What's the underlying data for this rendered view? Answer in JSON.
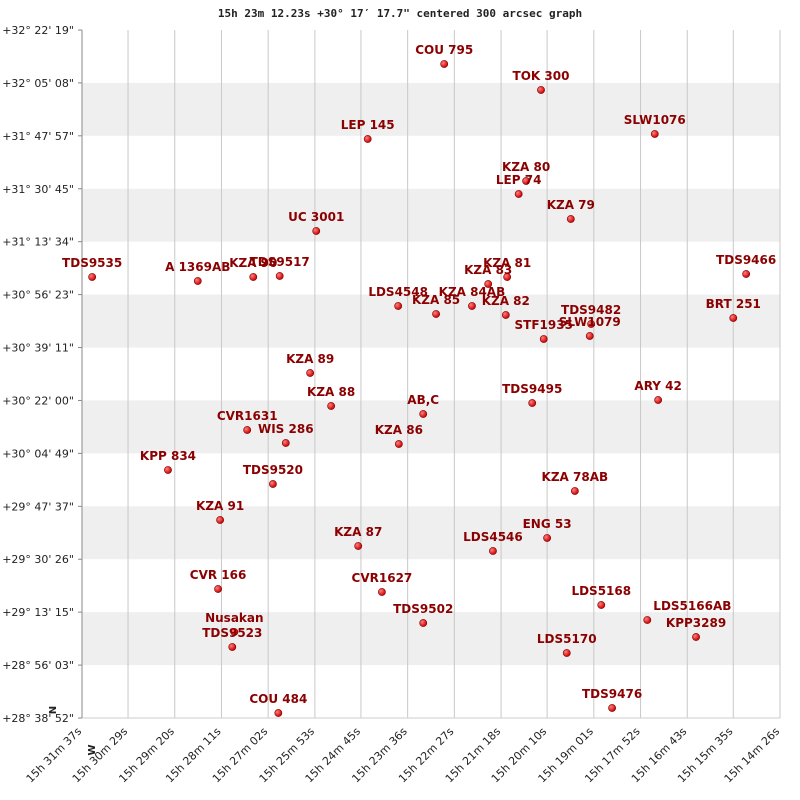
{
  "chart_data": {
    "type": "scatter",
    "title": "15h 23m 12.23s +30° 17′ 17.7\" centered 300 arcsec graph",
    "compass": {
      "north": "N",
      "west": "W"
    },
    "color": "#cc0000",
    "label_color": "#8b0000",
    "grid": true,
    "bands": true,
    "xlim": [
      55897,
      54866
    ],
    "xticks": [
      {
        "value": 55897,
        "label": "15h 31m 37s"
      },
      {
        "value": 55829,
        "label": "15h 30m 29s"
      },
      {
        "value": 55760,
        "label": "15h 29m 20s"
      },
      {
        "value": 55691,
        "label": "15h 28m 11s"
      },
      {
        "value": 55622,
        "label": "15h 27m 02s"
      },
      {
        "value": 55553,
        "label": "15h 25m 53s"
      },
      {
        "value": 55485,
        "label": "15h 24m 45s"
      },
      {
        "value": 55416,
        "label": "15h 23m 36s"
      },
      {
        "value": 55347,
        "label": "15h 22m 27s"
      },
      {
        "value": 55278,
        "label": "15h 21m 18s"
      },
      {
        "value": 55210,
        "label": "15h 20m 10s"
      },
      {
        "value": 55141,
        "label": "15h 19m 01s"
      },
      {
        "value": 55072,
        "label": "15h 17m 52s"
      },
      {
        "value": 55003,
        "label": "15h 16m 43s"
      },
      {
        "value": 54935,
        "label": "15h 15m 35s"
      },
      {
        "value": 54866,
        "label": "15h 14m 26s"
      }
    ],
    "ylim": [
      103132,
      116539
    ],
    "yticks": [
      {
        "value": 116539,
        "label": "+32° 22' 19\""
      },
      {
        "value": 115508,
        "label": "+32° 05' 08\""
      },
      {
        "value": 114477,
        "label": "+31° 47' 57\""
      },
      {
        "value": 113445,
        "label": "+31° 30' 45\""
      },
      {
        "value": 112414,
        "label": "+31° 13' 34\""
      },
      {
        "value": 111383,
        "label": "+30° 56' 23\""
      },
      {
        "value": 110351,
        "label": "+30° 39' 11\""
      },
      {
        "value": 109320,
        "label": "+30° 22' 00\""
      },
      {
        "value": 108289,
        "label": "+30° 04' 49\""
      },
      {
        "value": 107257,
        "label": "+29° 47' 37\""
      },
      {
        "value": 106226,
        "label": "+29° 30' 26\""
      },
      {
        "value": 105195,
        "label": "+29° 13' 15\""
      },
      {
        "value": 104163,
        "label": "+28° 56' 03\""
      },
      {
        "value": 103132,
        "label": "+28° 38' 52\""
      }
    ],
    "labels": [
      "COU 795",
      "TOK 300",
      "SLW1076",
      "LEP 145",
      "KZA 80",
      "LEP 74",
      "KZA 79",
      "UC 3001",
      "TDS9535",
      "A 1369AB",
      "KZA 90",
      "TDS9517",
      "TDS9466",
      "KZA 81",
      "KZA 83",
      "LDS4548",
      "KZA 85",
      "KZA 84AB",
      "KZA 82",
      "TDS9482",
      "BRT 251",
      "STF1935",
      "SLW1079",
      "KZA 89",
      "KZA 88",
      "AB,C",
      "TDS9495",
      "ARY 42",
      "CVR1631",
      "WIS 286",
      "KZA 86",
      "KPP 834",
      "TDS9520",
      "KZA 78AB",
      "KZA 91",
      "ENG 53",
      "KZA 87",
      "LDS4546",
      "CVR 166",
      "CVR1627",
      "LDS5168",
      "LDS5166AB",
      "TDS9502",
      "KPP3289",
      "Nusakan",
      "TDS9523",
      "LDS5170",
      "TDS9476",
      "COU 484"
    ],
    "x": [
      55362,
      55219,
      55051,
      55475,
      55241,
      55252,
      55175,
      55551,
      55882,
      55726,
      55644,
      55605,
      54916,
      55269,
      55297,
      55430,
      55374,
      55321,
      55271,
      55145,
      54935,
      55215,
      55147,
      55560,
      55529,
      55393,
      55232,
      55046,
      55653,
      55596,
      55429,
      55770,
      55615,
      55169,
      55693,
      55210,
      55489,
      55290,
      55696,
      55454,
      55130,
      55062,
      55393,
      54990,
      55672,
      55675,
      55181,
      55114,
      55607
    ],
    "values": [
      115877,
      115370,
      114512,
      114415,
      113597,
      113343,
      112856,
      112622,
      111726,
      111648,
      111726,
      111745,
      111784,
      111726,
      111589,
      111161,
      111005,
      111161,
      110985,
      110810,
      110927,
      110518,
      110576,
      109855,
      109212,
      109056,
      109270,
      109329,
      108744,
      108491,
      108471,
      107965,
      107692,
      107556,
      106990,
      106640,
      106484,
      106386,
      105646,
      105587,
      105334,
      105042,
      104983,
      104710,
      104808,
      104516,
      104399,
      103327,
      103229
    ]
  }
}
